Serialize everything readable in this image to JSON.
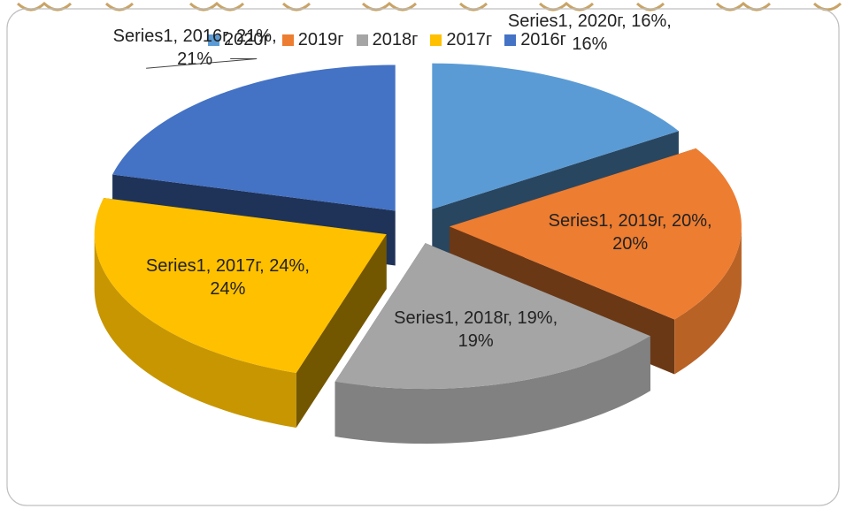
{
  "chart_data": {
    "type": "pie",
    "three_d": true,
    "exploded": true,
    "categories": [
      "2020г",
      "2019г",
      "2018г",
      "2017г",
      "2016г"
    ],
    "series": [
      {
        "name": "Series1",
        "values": [
          16,
          20,
          19,
          24,
          21
        ],
        "value_labels": [
          "Series1, 2020г, 16%, 16%",
          "Series1, 2019г, 20%, 20%",
          "Series1, 2018г, 19%, 19%",
          "Series1, 2017г, 24%, 24%",
          "Series1, 2016г, 21%, 21%"
        ]
      }
    ],
    "colors": [
      "#5b9bd5",
      "#ed7d31",
      "#a5a5a5",
      "#ffc000",
      "#4472c4"
    ],
    "legend": "top"
  }
}
